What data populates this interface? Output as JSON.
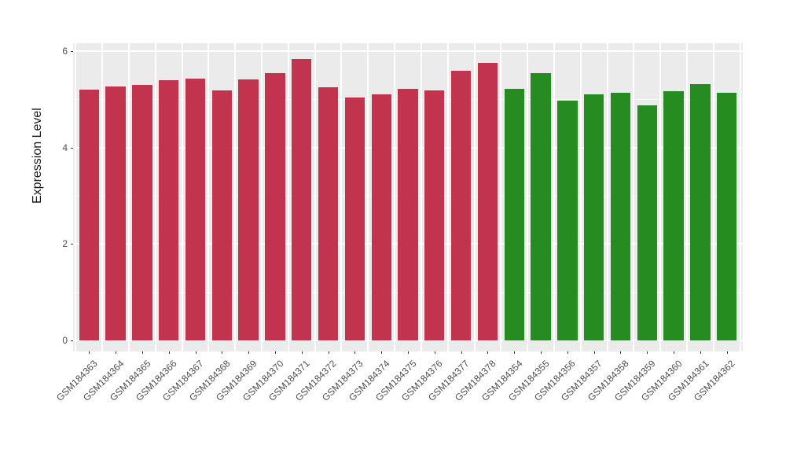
{
  "figure": {
    "background_color": "#FFFFFF",
    "panel_background_color": "#EBEBEB",
    "gridline_color": "#FFFFFF",
    "tick_color": "#333333",
    "tick_label_color": "#4D4D4D"
  },
  "chart_data": {
    "type": "bar",
    "title": "",
    "xlabel": "",
    "ylabel": "Expression Level",
    "ylim": [
      0,
      6.2
    ],
    "yticks": [
      0,
      2,
      4,
      6
    ],
    "ytick_labels": [
      "0",
      "2",
      "4",
      "6"
    ],
    "grid": "major and minor horizontal white gridlines, vertical white gridlines between bars, ggplot-style gray panel",
    "legend_position": "none",
    "x_tick_label_rotation_deg": 45,
    "categories": [
      "GSM184363",
      "GSM184364",
      "GSM184365",
      "GSM184366",
      "GSM184367",
      "GSM184368",
      "GSM184369",
      "GSM184370",
      "GSM184371",
      "GSM184372",
      "GSM184373",
      "GSM184374",
      "GSM184375",
      "GSM184376",
      "GSM184377",
      "GSM184378",
      "GSM184354",
      "GSM184355",
      "GSM184356",
      "GSM184357",
      "GSM184358",
      "GSM184359",
      "GSM184360",
      "GSM184361",
      "GSM184362"
    ],
    "values": [
      5.2,
      5.26,
      5.3,
      5.39,
      5.43,
      5.19,
      5.41,
      5.54,
      5.84,
      5.25,
      5.04,
      5.1,
      5.22,
      5.18,
      5.6,
      5.75,
      5.21,
      5.54,
      4.98,
      5.1,
      5.13,
      4.88,
      5.17,
      5.31,
      5.14
    ],
    "bar_groups": [
      "group1",
      "group1",
      "group1",
      "group1",
      "group1",
      "group1",
      "group1",
      "group1",
      "group1",
      "group1",
      "group1",
      "group1",
      "group1",
      "group1",
      "group1",
      "group1",
      "group2",
      "group2",
      "group2",
      "group2",
      "group2",
      "group2",
      "group2",
      "group2",
      "group2"
    ],
    "group_colors": {
      "group1": "#C2334D",
      "group2": "#268C21"
    }
  }
}
